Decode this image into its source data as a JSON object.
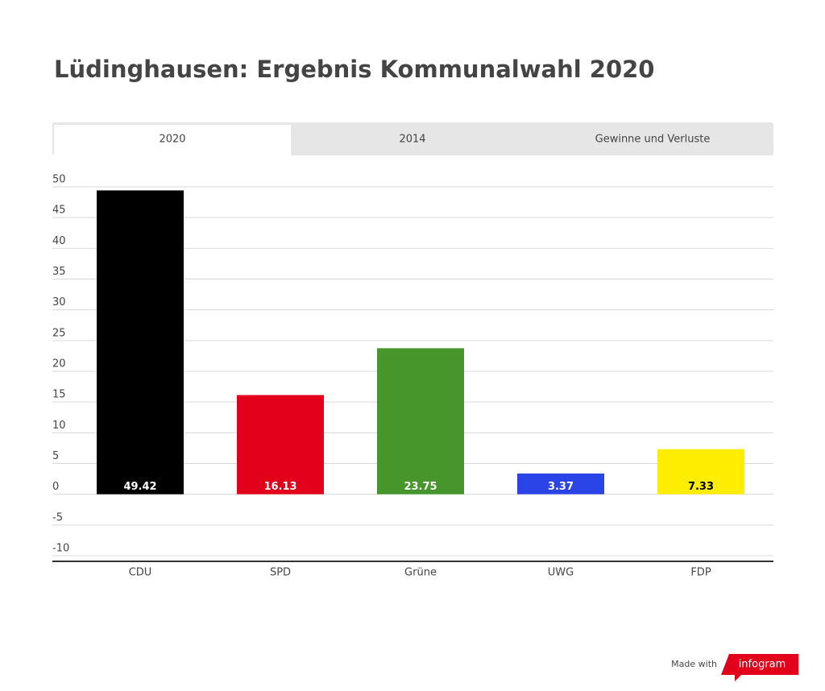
{
  "chart_data": {
    "type": "bar",
    "title": "Lüdinghausen: Ergebnis Kommunalwahl 2020",
    "categories": [
      "CDU",
      "SPD",
      "Grüne",
      "UWG",
      "FDP"
    ],
    "values": [
      49.42,
      16.13,
      23.75,
      3.37,
      7.33
    ],
    "colors": [
      "#000000",
      "#e2001a",
      "#46962b",
      "#2b44e8",
      "#ffed00"
    ],
    "ylim": [
      -10,
      50
    ],
    "yticks": [
      50,
      45,
      40,
      35,
      30,
      25,
      20,
      15,
      10,
      5,
      0,
      -5,
      -10
    ],
    "grid": true
  },
  "ui": {
    "tabs": [
      "2020",
      "2014",
      "Gewinne und Verluste"
    ],
    "made_with": "Made with",
    "brand": "infogram"
  }
}
